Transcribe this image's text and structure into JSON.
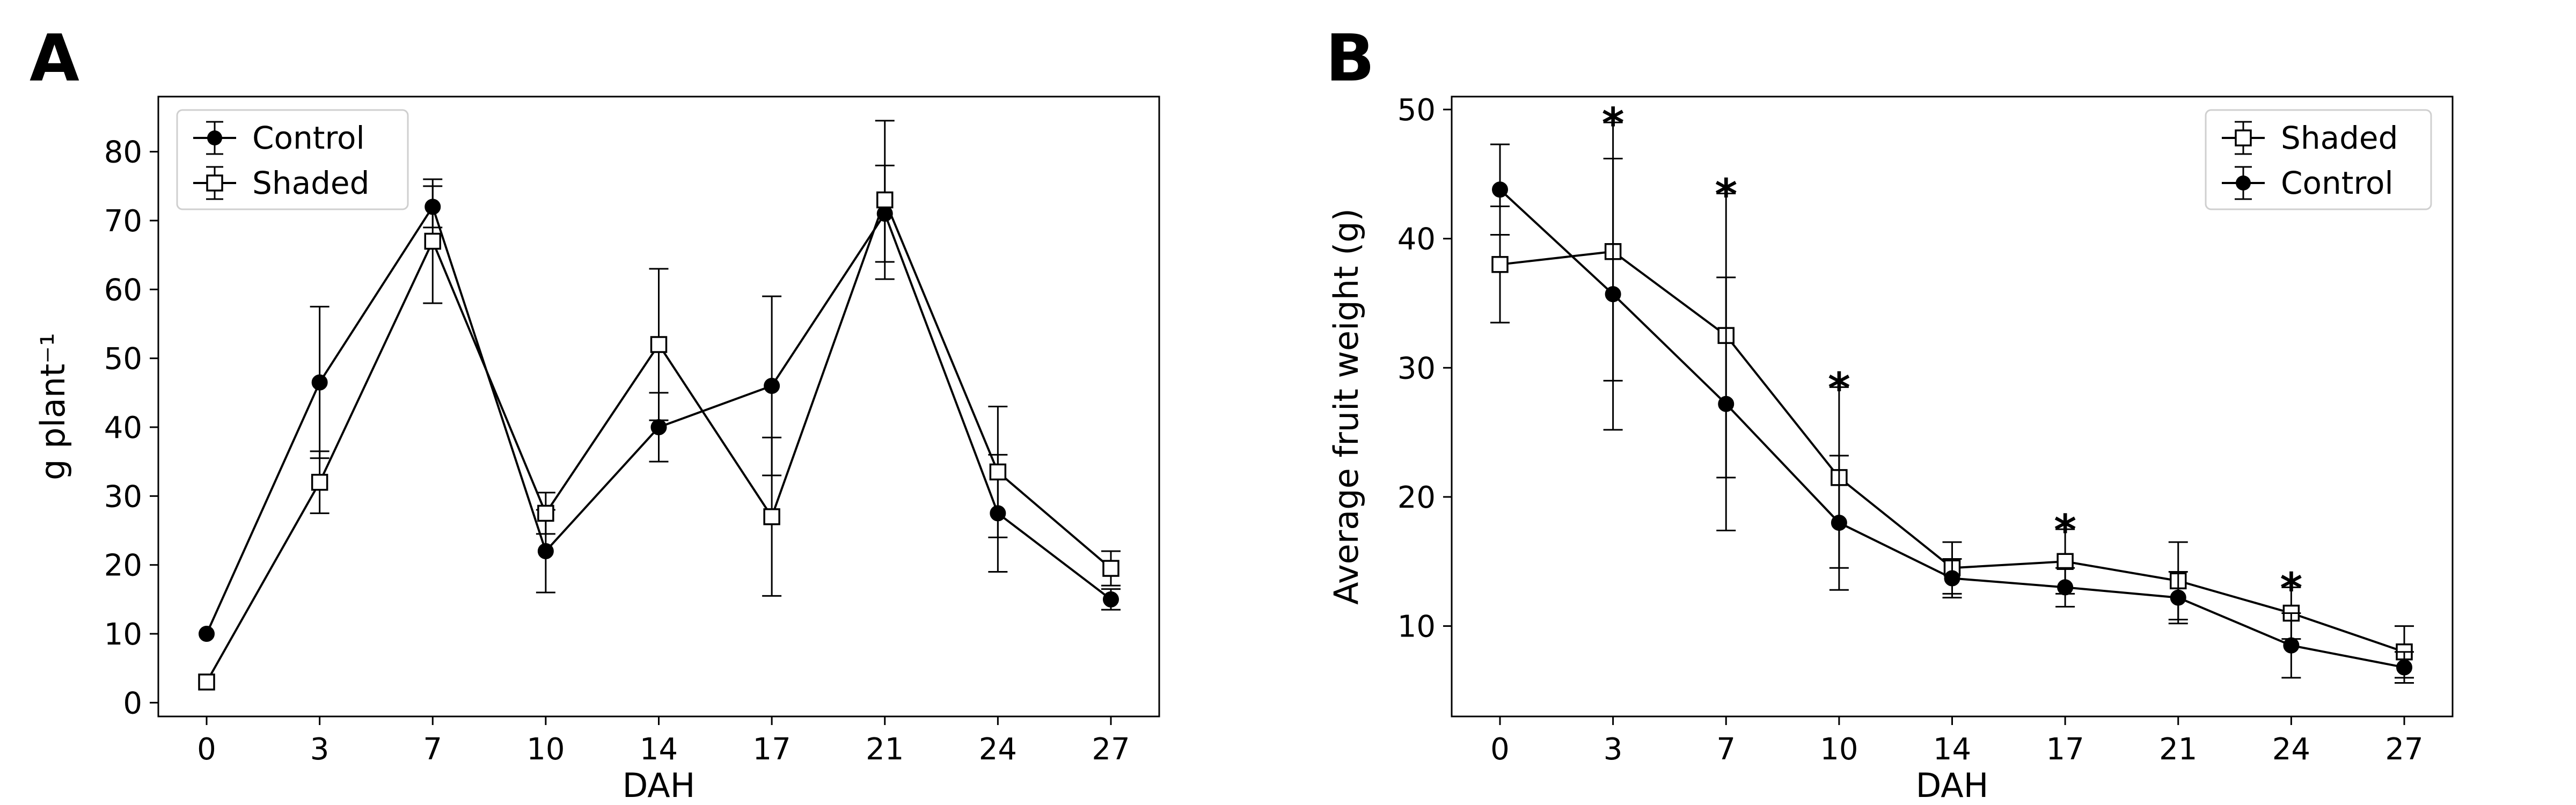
{
  "chart_data": [
    {
      "type": "line",
      "panel": "A",
      "xlabel": "DAH",
      "ylabel": "g plant⁻¹",
      "categories": [
        "0",
        "3",
        "7",
        "10",
        "14",
        "17",
        "21",
        "24",
        "27"
      ],
      "ylim": [
        -2,
        88
      ],
      "yticks": [
        0,
        10,
        20,
        30,
        40,
        50,
        60,
        70,
        80
      ],
      "legend_position": "top-left",
      "series": [
        {
          "name": "Control",
          "marker": "filled-circle",
          "values": [
            10,
            46.5,
            72,
            22,
            40,
            46,
            71,
            27.5,
            15
          ],
          "err": [
            0,
            11,
            3,
            6,
            5,
            13,
            7,
            8.5,
            1.5
          ]
        },
        {
          "name": "Shaded",
          "marker": "open-square",
          "values": [
            3,
            32,
            67,
            27.5,
            52,
            27,
            73,
            33.5,
            19.5
          ],
          "err": [
            0,
            4.5,
            9,
            3,
            11,
            11.5,
            11.5,
            9.5,
            2.5
          ]
        }
      ]
    },
    {
      "type": "line",
      "panel": "B",
      "xlabel": "DAH",
      "ylabel": "Average fruit weight (g)",
      "categories": [
        "0",
        "3",
        "7",
        "10",
        "14",
        "17",
        "21",
        "24",
        "27"
      ],
      "ylim": [
        3,
        51
      ],
      "yticks": [
        10,
        20,
        30,
        40,
        50
      ],
      "legend_position": "top-right",
      "series": [
        {
          "name": "Shaded",
          "marker": "open-square",
          "values": [
            38,
            39,
            32.5,
            21.5,
            14.5,
            15,
            13.5,
            11,
            8
          ],
          "err": [
            4.5,
            10,
            11,
            7,
            2,
            2.5,
            3,
            2,
            2
          ]
        },
        {
          "name": "Control",
          "marker": "filled-circle",
          "values": [
            43.8,
            35.7,
            27.2,
            18,
            13.7,
            13,
            12.2,
            8.5,
            6.8
          ],
          "err": [
            3.5,
            10.5,
            9.8,
            5.2,
            1.5,
            1.5,
            2,
            2.5,
            1.2
          ]
        }
      ],
      "significance_marks": [
        "",
        "*",
        "*",
        "*",
        "",
        "*",
        "",
        "*",
        ""
      ]
    }
  ]
}
